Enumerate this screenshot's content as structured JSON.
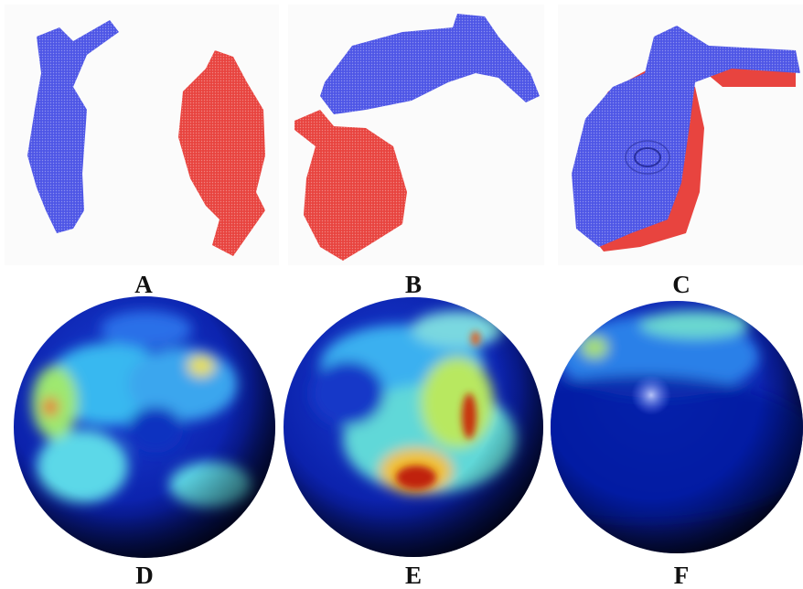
{
  "figure": {
    "panel_labels": [
      "A",
      "B",
      "C",
      "D",
      "E",
      "F"
    ]
  }
}
